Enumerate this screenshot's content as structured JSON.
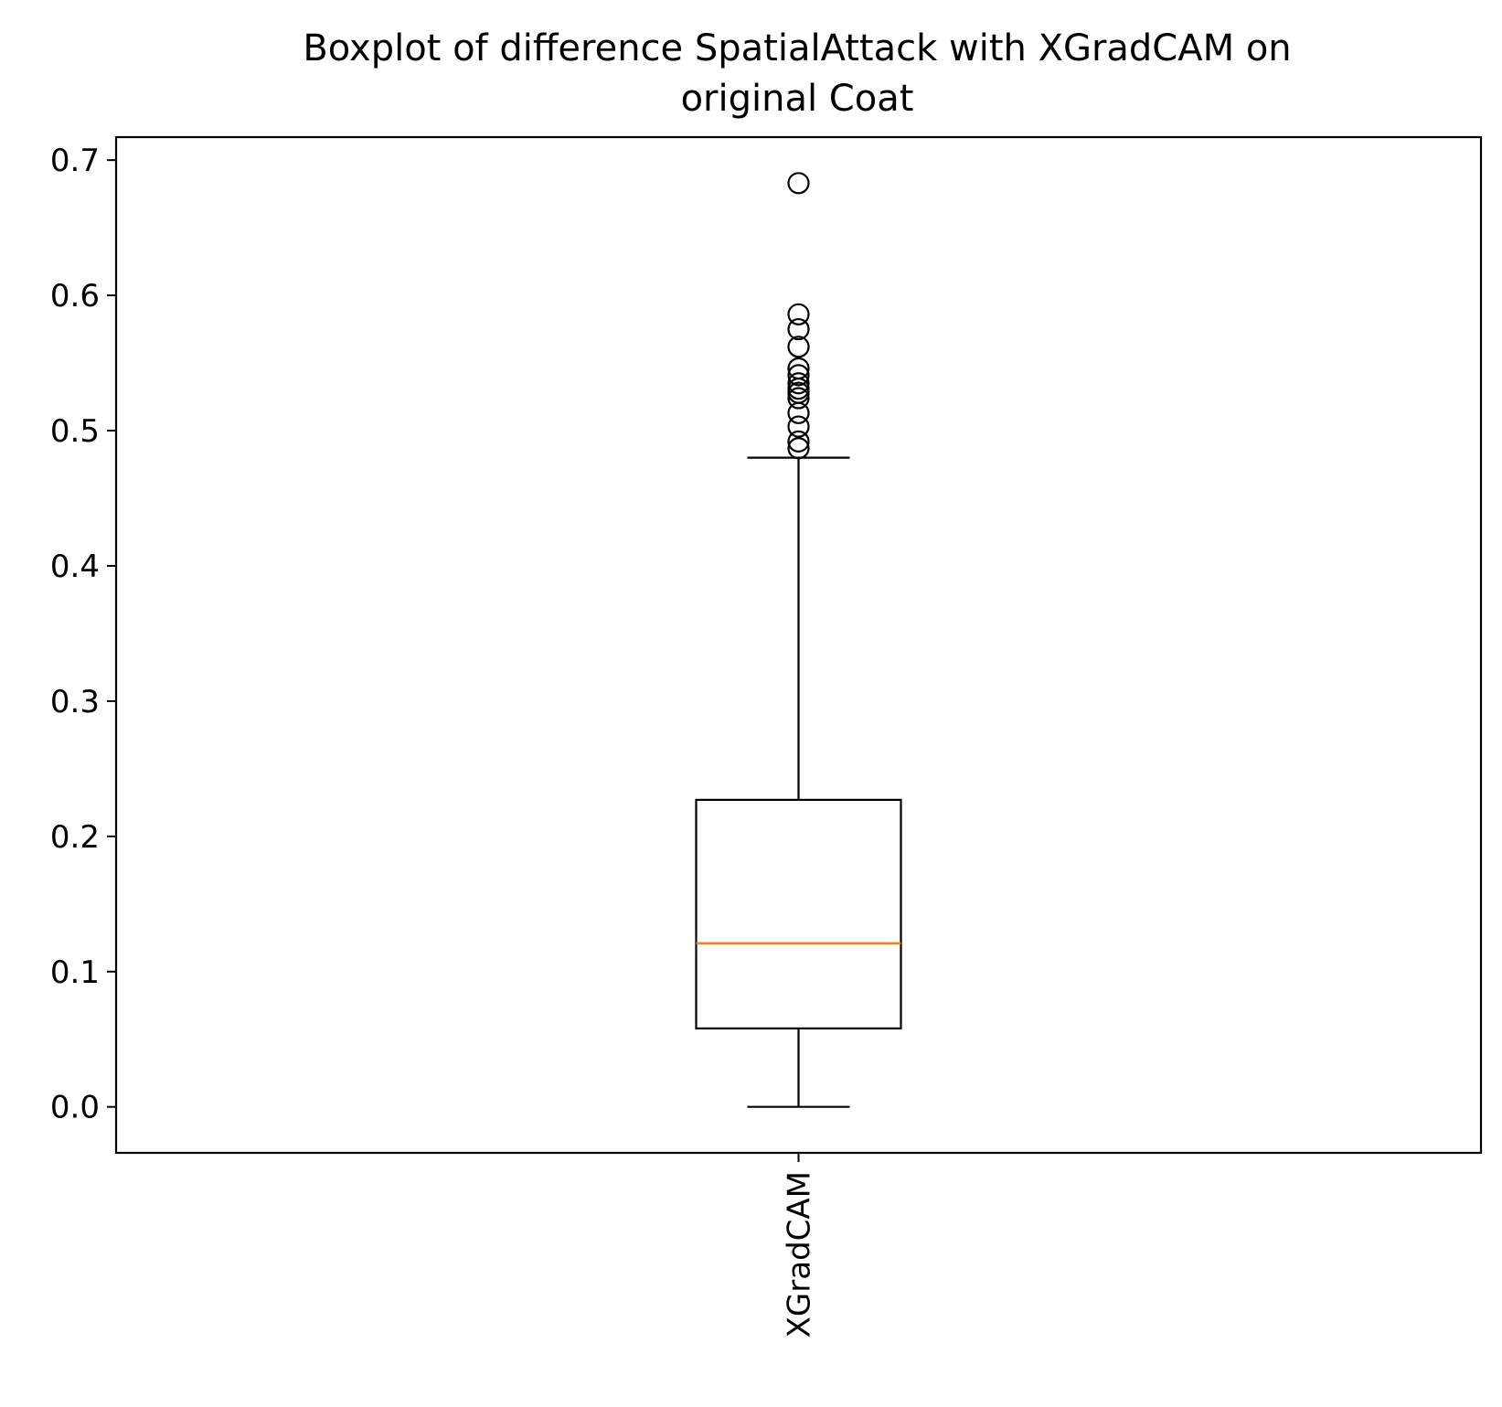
{
  "chart_data": {
    "type": "boxplot",
    "title_lines": [
      "Boxplot of difference SpatialAttack with XGradCAM on",
      "original Coat"
    ],
    "xlabel": "",
    "ylabel": "",
    "categories": [
      "XGradCAM"
    ],
    "x_tick_rotation": 90,
    "ylim": [
      -0.034,
      0.717
    ],
    "y_ticks": [
      0.0,
      0.1,
      0.2,
      0.3,
      0.4,
      0.5,
      0.6,
      0.7
    ],
    "y_tick_labels": [
      "0.0",
      "0.1",
      "0.2",
      "0.3",
      "0.4",
      "0.5",
      "0.6",
      "0.7"
    ],
    "grid": false,
    "boxes": [
      {
        "label": "XGradCAM",
        "whisker_low": 0.0,
        "q1": 0.058,
        "median": 0.121,
        "q3": 0.227,
        "whisker_high": 0.48,
        "outliers": [
          0.683,
          0.586,
          0.575,
          0.562,
          0.546,
          0.541,
          0.535,
          0.531,
          0.528,
          0.524,
          0.513,
          0.503,
          0.492,
          0.487
        ]
      }
    ],
    "colors": {
      "box": "#000000",
      "median": "#ff7f0e",
      "outlier": "#000000"
    }
  }
}
